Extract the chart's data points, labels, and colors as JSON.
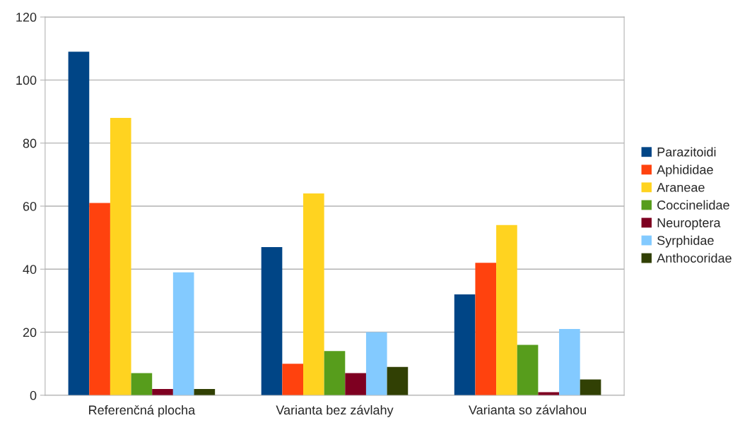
{
  "chart_data": {
    "type": "bar",
    "categories": [
      "Referenčná plocha",
      "Varianta bez závlahy",
      "Varianta so závlahou"
    ],
    "series": [
      {
        "name": "Parazitoidi",
        "color": "#004586",
        "values": [
          109,
          47,
          32
        ]
      },
      {
        "name": "Aphididae",
        "color": "#ff420e",
        "values": [
          61,
          10,
          42
        ]
      },
      {
        "name": "Araneae",
        "color": "#ffd320",
        "values": [
          88,
          64,
          54
        ]
      },
      {
        "name": "Coccinelidae",
        "color": "#579d1c",
        "values": [
          7,
          14,
          16
        ]
      },
      {
        "name": "Neuroptera",
        "color": "#7e0021",
        "values": [
          2,
          7,
          1
        ]
      },
      {
        "name": "Syrphidae",
        "color": "#83caff",
        "values": [
          39,
          20,
          21
        ]
      },
      {
        "name": "Anthocoridae",
        "color": "#314004",
        "values": [
          2,
          9,
          5
        ]
      }
    ],
    "ylim": [
      0,
      120
    ],
    "yticks": [
      0,
      20,
      40,
      60,
      80,
      100,
      120
    ],
    "grid": "y",
    "legend": "right"
  }
}
